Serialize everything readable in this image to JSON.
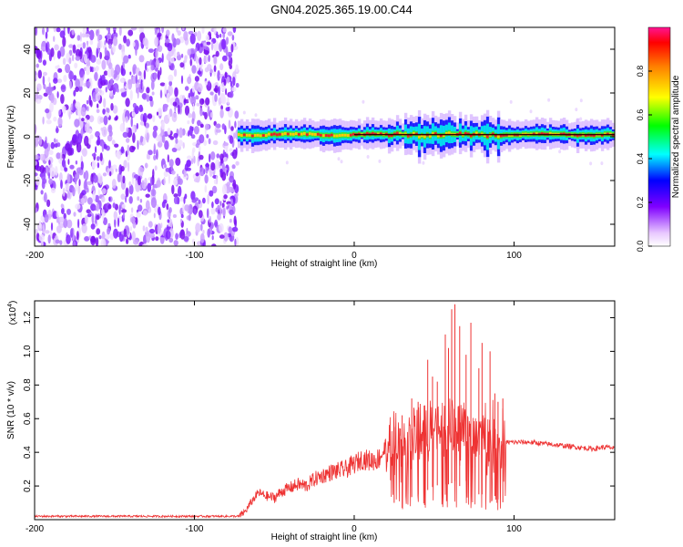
{
  "title": "GN04.2025.365.19.00.C44",
  "chart_data": [
    {
      "type": "heatmap",
      "name": "spectrogram",
      "xlabel": "Height of straight line (km)",
      "ylabel": "Frequency (Hz)",
      "xlim": [
        -200,
        163
      ],
      "ylim": [
        -50,
        50
      ],
      "xticks": [
        -200,
        -100,
        0,
        100
      ],
      "yticks": [
        -40,
        -20,
        0,
        20,
        40
      ],
      "noise_region_x": [
        -200,
        -73
      ],
      "signal_band": {
        "x_start": -73,
        "x_end": 163,
        "freq_center": 1,
        "freq_halfwidth": 2
      },
      "colorbar": {
        "label": "Normalized spectral amplitude",
        "range": [
          0,
          1
        ],
        "ticks": [
          0.0,
          0.2,
          0.4,
          0.6,
          0.8
        ]
      }
    },
    {
      "type": "line",
      "name": "snr",
      "xlabel": "Height of straight line (km)",
      "ylabel": "SNR (10 * v/v)",
      "multiplier_label": "(x10",
      "multiplier_exp": "4",
      "multiplier_close": ")",
      "xlim": [
        -200,
        163
      ],
      "ylim": [
        0,
        1.3
      ],
      "xticks": [
        -200,
        -100,
        0,
        100
      ],
      "yticks": [
        0.2,
        0.4,
        0.6,
        0.8,
        1.0,
        1.2
      ],
      "color": "#ee3333",
      "series": [
        {
          "name": "SNR",
          "x": [
            -200,
            -180,
            -160,
            -140,
            -120,
            -100,
            -80,
            -72,
            -68,
            -64,
            -60,
            -55,
            -50,
            -45,
            -40,
            -35,
            -30,
            -25,
            -20,
            -15,
            -10,
            -5,
            0,
            5,
            10,
            15,
            20,
            25,
            30,
            35,
            40,
            45,
            50,
            55,
            60,
            63,
            65,
            67,
            70,
            73,
            75,
            78,
            80,
            83,
            85,
            87,
            90,
            92,
            95,
            100,
            110,
            120,
            130,
            140,
            150,
            155,
            160,
            163
          ],
          "values": [
            0.02,
            0.02,
            0.02,
            0.02,
            0.02,
            0.02,
            0.02,
            0.02,
            0.05,
            0.11,
            0.16,
            0.14,
            0.13,
            0.17,
            0.19,
            0.21,
            0.2,
            0.24,
            0.26,
            0.28,
            0.29,
            0.3,
            0.33,
            0.36,
            0.35,
            0.36,
            0.43,
            0.45,
            0.42,
            0.48,
            0.5,
            0.52,
            0.55,
            0.56,
            0.56,
            0.58,
            0.54,
            0.56,
            0.58,
            0.55,
            0.52,
            0.5,
            0.5,
            0.48,
            0.45,
            0.5,
            0.47,
            0.45,
            0.46,
            0.46,
            0.46,
            0.45,
            0.44,
            0.43,
            0.42,
            0.43,
            0.43,
            0.42
          ],
          "spike_x": [
            25,
            30,
            36,
            40,
            46,
            49,
            52,
            57,
            59,
            61,
            63,
            66,
            70,
            73,
            78,
            80,
            85,
            88,
            90,
            93
          ],
          "spike_values": [
            0.55,
            0.62,
            0.72,
            0.7,
            0.95,
            0.85,
            0.82,
            1.1,
            1.02,
            1.25,
            1.28,
            1.15,
            0.98,
            1.17,
            0.9,
            1.05,
            1.0,
            0.75,
            0.7,
            0.72
          ]
        }
      ]
    }
  ]
}
